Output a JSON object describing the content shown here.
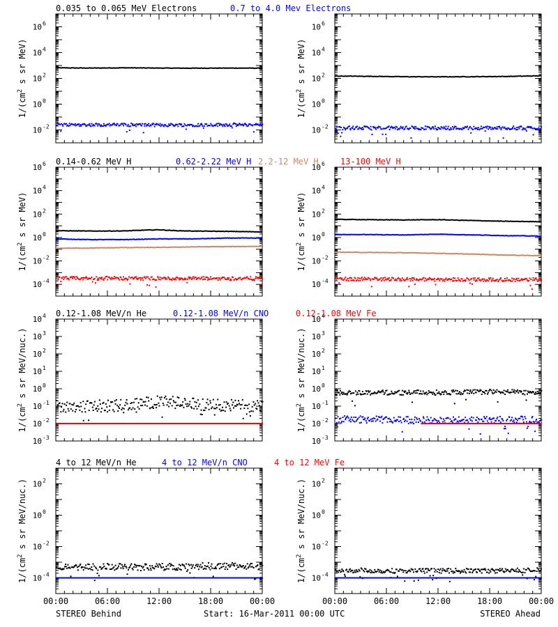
{
  "colors": {
    "black": "#000000",
    "blue": "#0000ff",
    "tan": "#cc8866",
    "red": "#ff0000"
  },
  "footer": {
    "left": "STEREO Behind",
    "center": "Start: 16-Mar-2011 00:00 UTC",
    "right": "STEREO Ahead"
  },
  "rows": [
    {
      "legend": [
        {
          "text": "0.035 to 0.065 MeV Electrons",
          "color": "black"
        },
        {
          "text": "0.7 to 4.0 Mev Electrons",
          "color": "blue"
        }
      ],
      "ylabel_parts": [
        "1/(cm",
        "2",
        " s sr MeV)"
      ]
    },
    {
      "legend": [
        {
          "text": "0.14-0.62 MeV H",
          "color": "black"
        },
        {
          "text": "0.62-2.22 MeV H",
          "color": "blue"
        },
        {
          "text": "2.2-12 MeV H",
          "color": "tan"
        },
        {
          "text": "13-100 MeV H",
          "color": "red"
        }
      ],
      "ylabel_parts": [
        "1/(cm",
        "2",
        " s sr MeV)"
      ]
    },
    {
      "legend": [
        {
          "text": "0.12-1.08 MeV/n He",
          "color": "black"
        },
        {
          "text": "0.12-1.08 MeV/n CNO",
          "color": "blue"
        },
        {
          "text": "0.12-1.08 MeV Fe",
          "color": "red"
        }
      ],
      "ylabel_parts": [
        "1/(cm",
        "2",
        " s sr MeV/nuc.)"
      ]
    },
    {
      "legend": [
        {
          "text": "4 to 12 MeV/n He",
          "color": "black"
        },
        {
          "text": "4 to 12 MeV/n CNO",
          "color": "blue"
        },
        {
          "text": "4 to 12 MeV Fe",
          "color": "red"
        }
      ],
      "ylabel_parts": [
        "1/(cm",
        "2",
        " s sr MeV/nuc.)"
      ]
    }
  ],
  "chart_data": [
    {
      "id": "r1-behind",
      "type": "scatter",
      "row": 0,
      "col": 0,
      "yscale": "log",
      "xlim": [
        0,
        24
      ],
      "xticks": [
        "00:00",
        "06:00",
        "12:00",
        "18:00",
        "00:00"
      ],
      "ylim_exp": [
        -3,
        7
      ],
      "ytick_exps": [
        -2,
        0,
        2,
        4,
        6
      ],
      "series": [
        {
          "color": "black",
          "style": "line",
          "x": [
            0,
            4,
            8,
            12,
            16,
            20,
            24
          ],
          "log_y": [
            2.82,
            2.8,
            2.82,
            2.8,
            2.79,
            2.8,
            2.79
          ]
        },
        {
          "color": "blue",
          "style": "dots",
          "x": [
            0,
            6,
            12,
            18,
            24
          ],
          "log_y": [
            -1.6,
            -1.6,
            -1.62,
            -1.6,
            -1.6
          ],
          "jitter": 0.12
        }
      ]
    },
    {
      "id": "r1-ahead",
      "type": "scatter",
      "row": 0,
      "col": 1,
      "yscale": "log",
      "xlim": [
        0,
        24
      ],
      "xticks": [
        "00:00",
        "06:00",
        "12:00",
        "18:00",
        "00:00"
      ],
      "ylim_exp": [
        -3,
        7
      ],
      "ytick_exps": [
        -2,
        0,
        2,
        4,
        6
      ],
      "series": [
        {
          "color": "black",
          "style": "line",
          "x": [
            0,
            4,
            8,
            12,
            16,
            20,
            24
          ],
          "log_y": [
            2.18,
            2.16,
            2.13,
            2.12,
            2.13,
            2.15,
            2.2
          ]
        },
        {
          "color": "blue",
          "style": "dots",
          "x": [
            0,
            6,
            12,
            18,
            24
          ],
          "log_y": [
            -1.85,
            -1.85,
            -1.85,
            -1.85,
            -1.85
          ],
          "jitter": 0.14
        }
      ]
    },
    {
      "id": "r2-behind",
      "type": "scatter",
      "row": 1,
      "col": 0,
      "yscale": "log",
      "xlim": [
        0,
        24
      ],
      "xticks": [
        "00:00",
        "06:00",
        "12:00",
        "18:00",
        "00:00"
      ],
      "ylim_exp": [
        -5,
        6
      ],
      "ytick_exps": [
        -4,
        -2,
        0,
        2,
        4,
        6
      ],
      "series": [
        {
          "color": "black",
          "style": "line",
          "x": [
            0,
            4,
            8,
            10,
            12,
            14,
            16,
            20,
            24
          ],
          "log_y": [
            0.58,
            0.55,
            0.56,
            0.62,
            0.66,
            0.58,
            0.55,
            0.52,
            0.48
          ]
        },
        {
          "color": "blue",
          "style": "line",
          "x": [
            0,
            4,
            8,
            12,
            16,
            20,
            24
          ],
          "log_y": [
            -0.12,
            -0.18,
            -0.18,
            -0.12,
            -0.12,
            -0.05,
            -0.05
          ]
        },
        {
          "color": "tan",
          "style": "line",
          "x": [
            0,
            4,
            8,
            12,
            16,
            20,
            24
          ],
          "log_y": [
            -0.92,
            -0.9,
            -0.86,
            -0.85,
            -0.8,
            -0.78,
            -0.75
          ]
        },
        {
          "color": "red",
          "style": "dots",
          "x": [
            0,
            6,
            12,
            18,
            24
          ],
          "log_y": [
            -3.5,
            -3.48,
            -3.5,
            -3.5,
            -3.5
          ],
          "jitter": 0.15
        }
      ]
    },
    {
      "id": "r2-ahead",
      "type": "scatter",
      "row": 1,
      "col": 1,
      "yscale": "log",
      "xlim": [
        0,
        24
      ],
      "xticks": [
        "00:00",
        "06:00",
        "12:00",
        "18:00",
        "00:00"
      ],
      "ylim_exp": [
        -5,
        6
      ],
      "ytick_exps": [
        -4,
        -2,
        0,
        2,
        4,
        6
      ],
      "series": [
        {
          "color": "black",
          "style": "line",
          "x": [
            0,
            4,
            8,
            12,
            16,
            20,
            24
          ],
          "log_y": [
            1.55,
            1.52,
            1.5,
            1.52,
            1.45,
            1.38,
            1.35
          ]
        },
        {
          "color": "blue",
          "style": "line",
          "x": [
            0,
            4,
            8,
            12,
            16,
            20,
            24
          ],
          "log_y": [
            0.25,
            0.25,
            0.22,
            0.28,
            0.22,
            0.16,
            0.12
          ]
        },
        {
          "color": "tan",
          "style": "line",
          "x": [
            0,
            4,
            8,
            12,
            16,
            20,
            24
          ],
          "log_y": [
            -1.25,
            -1.28,
            -1.3,
            -1.35,
            -1.42,
            -1.5,
            -1.55
          ]
        },
        {
          "color": "red",
          "style": "dots",
          "x": [
            0,
            6,
            12,
            18,
            24
          ],
          "log_y": [
            -3.55,
            -3.55,
            -3.58,
            -3.6,
            -3.6
          ],
          "jitter": 0.15
        }
      ]
    },
    {
      "id": "r3-behind",
      "type": "scatter",
      "row": 2,
      "col": 0,
      "yscale": "log",
      "xlim": [
        0,
        24
      ],
      "xticks": [
        "00:00",
        "06:00",
        "12:00",
        "18:00",
        "00:00"
      ],
      "ylim_exp": [
        -3,
        4
      ],
      "ytick_exps": [
        -3,
        -2,
        -1,
        0,
        1,
        2,
        3,
        4
      ],
      "series": [
        {
          "color": "black",
          "style": "dots",
          "x": [
            0,
            6,
            10,
            12,
            18,
            24
          ],
          "log_y": [
            -1.0,
            -1.0,
            -0.85,
            -0.75,
            -0.95,
            -1.0
          ],
          "jitter": 0.35
        },
        {
          "color": "blue",
          "style": "dots",
          "x": [
            0,
            24
          ],
          "log_y": [
            -2.0,
            -2.0
          ],
          "jitter": 0.0
        },
        {
          "color": "red",
          "style": "dots",
          "x": [
            0,
            24
          ],
          "log_y": [
            -2.0,
            -2.0
          ],
          "jitter": 0.0
        }
      ]
    },
    {
      "id": "r3-ahead",
      "type": "scatter",
      "row": 2,
      "col": 1,
      "yscale": "log",
      "xlim": [
        0,
        24
      ],
      "xticks": [
        "00:00",
        "06:00",
        "12:00",
        "18:00",
        "00:00"
      ],
      "ylim_exp": [
        -3,
        4
      ],
      "ytick_exps": [
        -3,
        -2,
        -1,
        0,
        1,
        2,
        3,
        4
      ],
      "series": [
        {
          "color": "black",
          "style": "dots",
          "x": [
            0,
            6,
            12,
            18,
            24
          ],
          "log_y": [
            -0.22,
            -0.22,
            -0.22,
            -0.18,
            -0.22
          ],
          "jitter": 0.14
        },
        {
          "color": "blue",
          "style": "dots",
          "x": [
            0,
            12,
            24
          ],
          "log_y": [
            -1.75,
            -1.82,
            -1.78
          ],
          "jitter": 0.2
        },
        {
          "color": "red",
          "style": "dots",
          "x": [
            10,
            24
          ],
          "log_y": [
            -2.0,
            -2.0
          ],
          "jitter": 0.0
        }
      ]
    },
    {
      "id": "r4-behind",
      "type": "scatter",
      "row": 3,
      "col": 0,
      "yscale": "log",
      "xlim": [
        0,
        24
      ],
      "xticks": [
        "00:00",
        "06:00",
        "12:00",
        "18:00",
        "00:00"
      ],
      "ylim_exp": [
        -5,
        3
      ],
      "ytick_exps": [
        -4,
        -2,
        0,
        2
      ],
      "series": [
        {
          "color": "black",
          "style": "dots",
          "x": [
            0,
            6,
            12,
            18,
            24
          ],
          "log_y": [
            -3.3,
            -3.3,
            -3.3,
            -3.25,
            -3.25
          ],
          "jitter": 0.22
        },
        {
          "color": "blue",
          "style": "dots",
          "x": [
            0,
            24
          ],
          "log_y": [
            -4.0,
            -4.0
          ],
          "jitter": 0.0
        }
      ]
    },
    {
      "id": "r4-ahead",
      "type": "scatter",
      "row": 3,
      "col": 1,
      "yscale": "log",
      "xlim": [
        0,
        24
      ],
      "xticks": [
        "00:00",
        "06:00",
        "12:00",
        "18:00",
        "00:00"
      ],
      "ylim_exp": [
        -5,
        3
      ],
      "ytick_exps": [
        -4,
        -2,
        0,
        2
      ],
      "series": [
        {
          "color": "black",
          "style": "dots",
          "x": [
            0,
            6,
            12,
            18,
            24
          ],
          "log_y": [
            -3.5,
            -3.55,
            -3.55,
            -3.55,
            -3.5
          ],
          "jitter": 0.15
        },
        {
          "color": "blue",
          "style": "dots",
          "x": [
            0,
            24
          ],
          "log_y": [
            -4.0,
            -4.0
          ],
          "jitter": 0.0
        }
      ]
    }
  ]
}
